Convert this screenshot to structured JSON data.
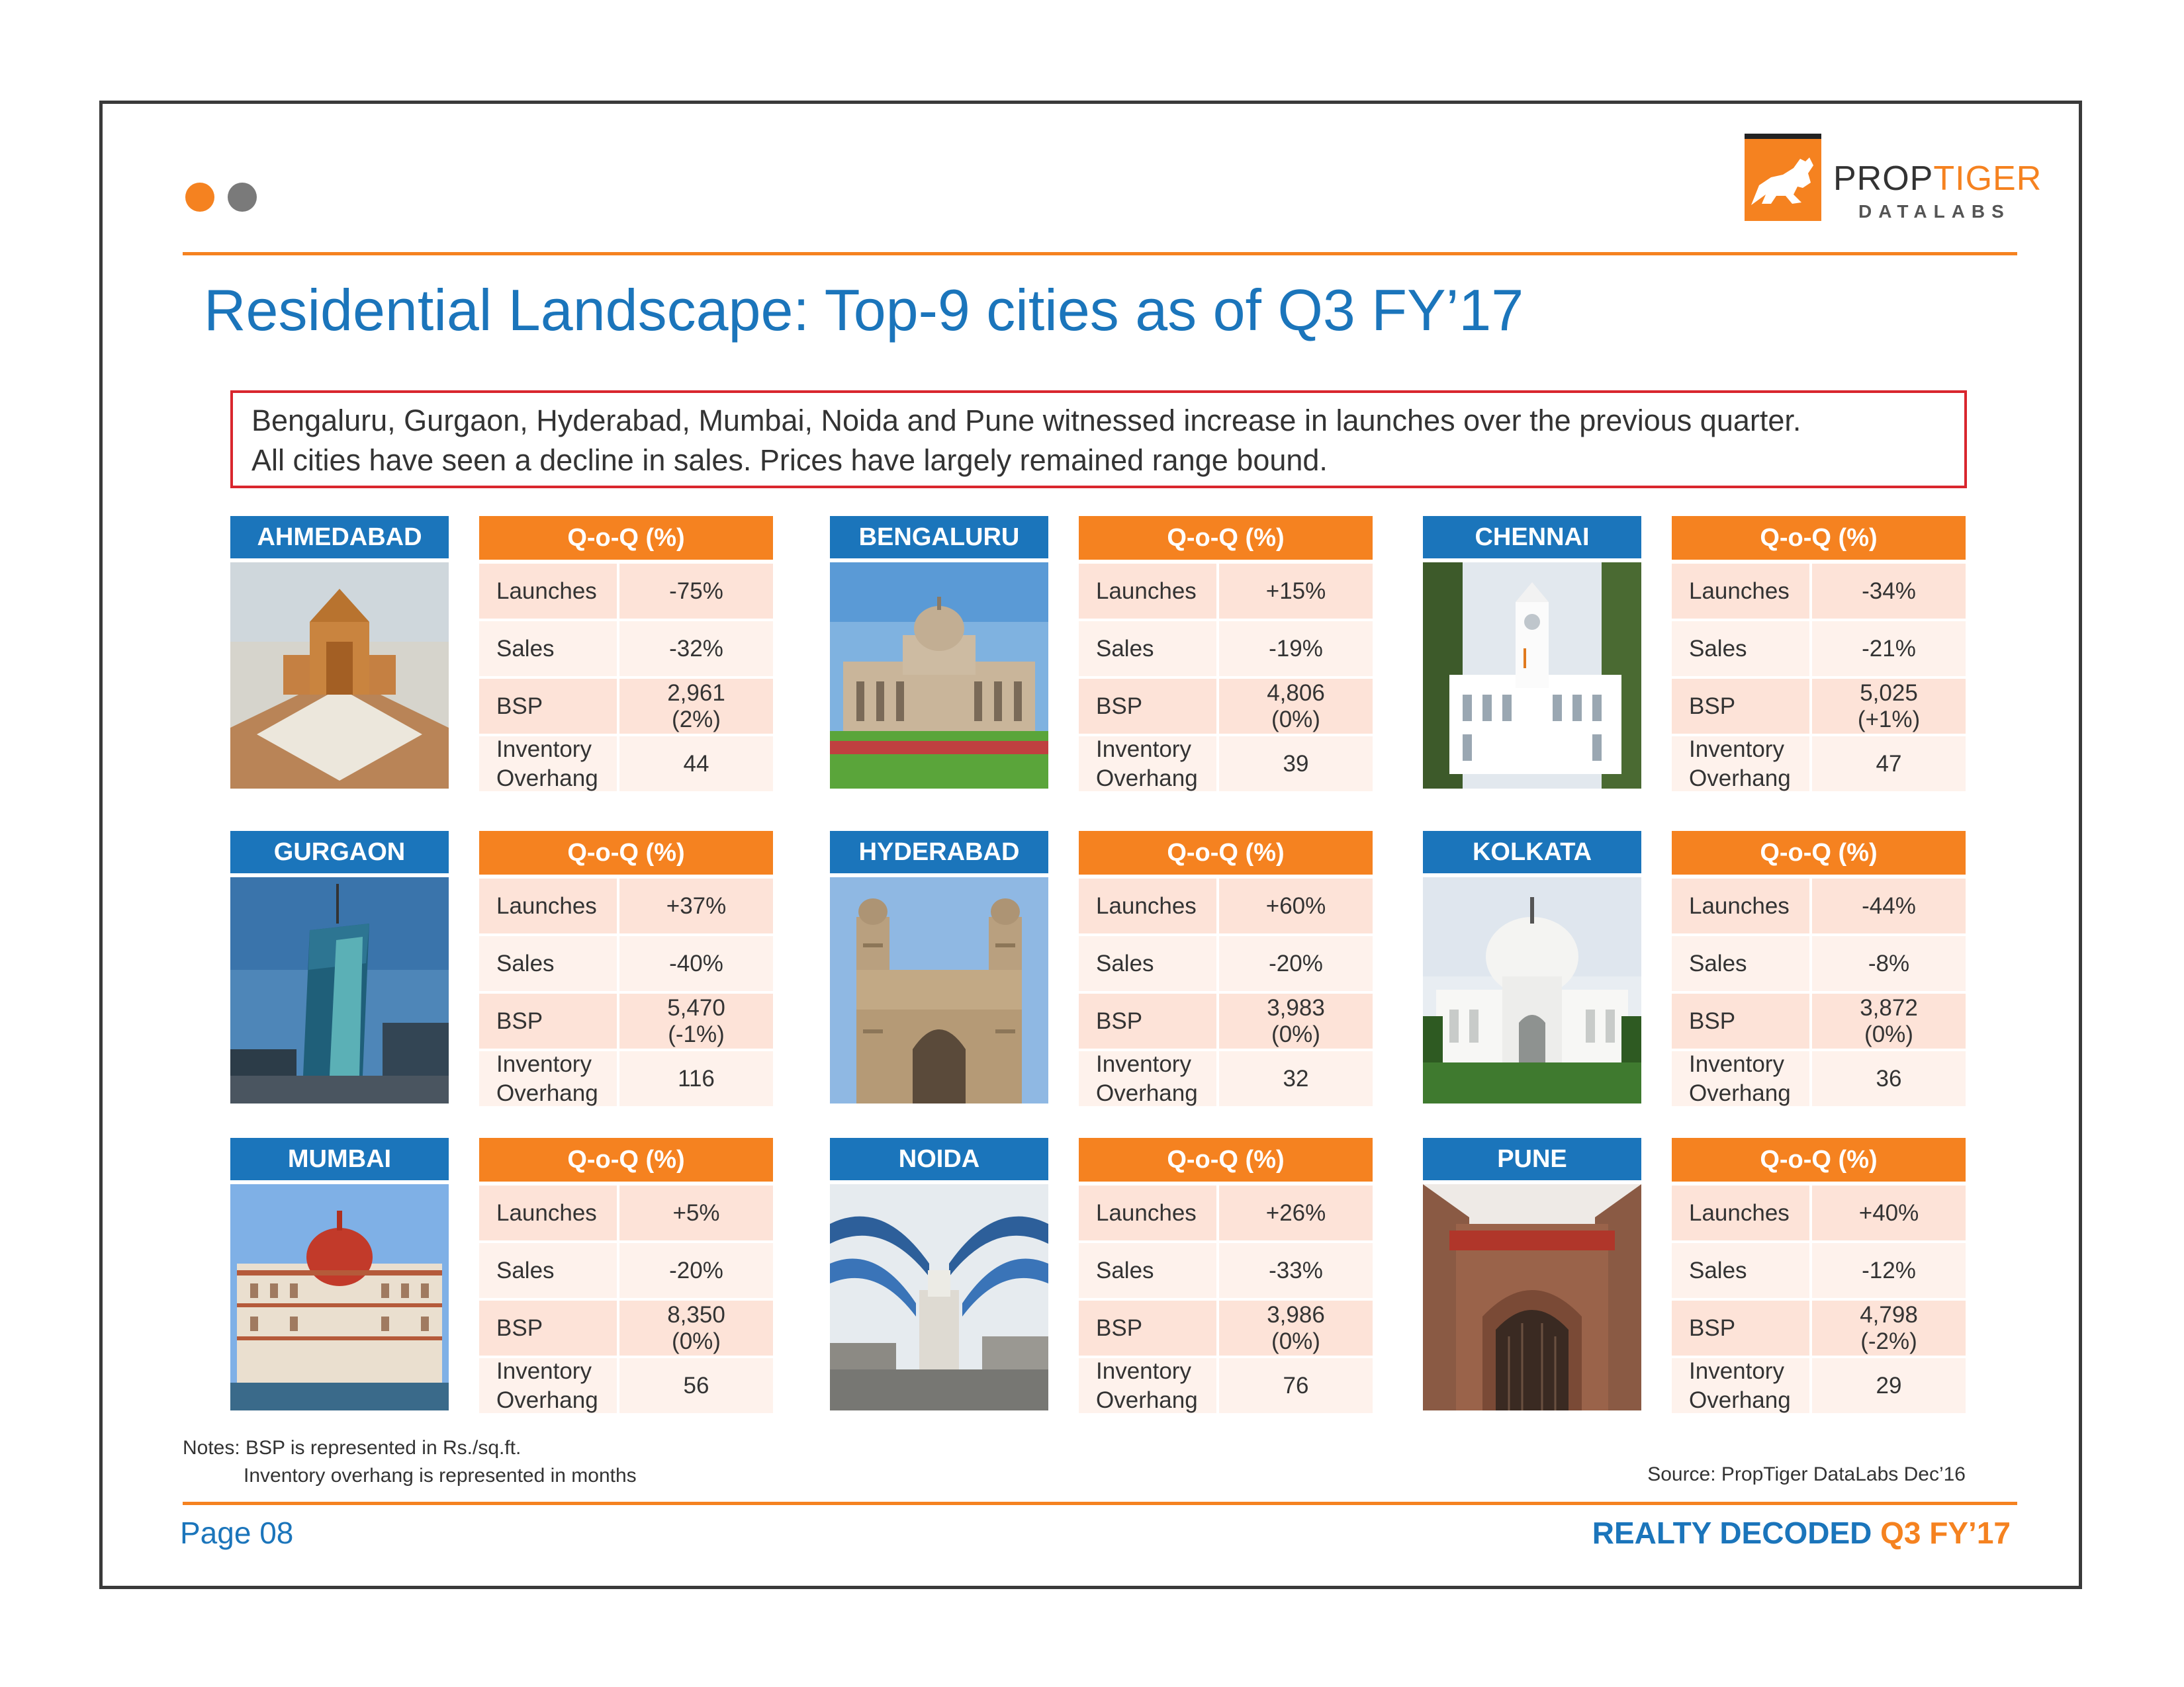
{
  "colors": {
    "brand_blue": "#1b75bb",
    "brand_orange": "#f58220",
    "alert_red": "#d9262e"
  },
  "logo": {
    "name_part1": "PROP",
    "name_part2": "TIGER",
    "sub": "DATALABS"
  },
  "title": "Residential Landscape: Top-9 cities as of Q3 FY’17",
  "summary": {
    "line1": "Bengaluru, Gurgaon, Hyderabad, Mumbai, Noida and Pune witnessed increase in launches over the previous quarter.",
    "line2": "All cities have seen a decline in sales. Prices have largely remained range bound."
  },
  "table_header": "Q-o-Q (%)",
  "row_labels": {
    "launches": "Launches",
    "sales": "Sales",
    "bsp": "BSP",
    "inv1": "Inventory",
    "inv2": "Overhang"
  },
  "cities": [
    {
      "name": "AHMEDABAD",
      "image_icon": "akshardham-temple-image",
      "launches": "-75%",
      "sales": "-32%",
      "bsp": "2,961",
      "bsp_change": "(2%)",
      "inventory": "44"
    },
    {
      "name": "BENGALURU",
      "image_icon": "vidhana-soudha-image",
      "launches": "+15%",
      "sales": "-19%",
      "bsp": "4,806",
      "bsp_change": "(0%)",
      "inventory": "39"
    },
    {
      "name": "CHENNAI",
      "image_icon": "ripon-building-image",
      "launches": "-34%",
      "sales": "-21%",
      "bsp": "5,025",
      "bsp_change": "(+1%)",
      "inventory": "47"
    },
    {
      "name": "GURGAON",
      "image_icon": "glass-tower-image",
      "launches": "+37%",
      "sales": "-40%",
      "bsp": "5,470",
      "bsp_change": "(-1%)",
      "inventory": "116"
    },
    {
      "name": "HYDERABAD",
      "image_icon": "charminar-image",
      "launches": "+60%",
      "sales": "-20%",
      "bsp": "3,983",
      "bsp_change": "(0%)",
      "inventory": "32"
    },
    {
      "name": "KOLKATA",
      "image_icon": "victoria-memorial-image",
      "launches": "-44%",
      "sales": "-8%",
      "bsp": "3,872",
      "bsp_change": "(0%)",
      "inventory": "36"
    },
    {
      "name": "MUMBAI",
      "image_icon": "taj-hotel-image",
      "launches": "+5%",
      "sales": "-20%",
      "bsp": "8,350",
      "bsp_change": "(0%)",
      "inventory": "56"
    },
    {
      "name": "NOIDA",
      "image_icon": "city-gate-image",
      "launches": "+26%",
      "sales": "-33%",
      "bsp": "3,986",
      "bsp_change": "(0%)",
      "inventory": "76"
    },
    {
      "name": "PUNE",
      "image_icon": "shaniwar-wada-image",
      "launches": "+40%",
      "sales": "-12%",
      "bsp": "4,798",
      "bsp_change": "(-2%)",
      "inventory": "29"
    }
  ],
  "notes": {
    "line1": "Notes: BSP is represented in Rs./sq.ft.",
    "line2": "Inventory overhang is represented in months"
  },
  "source": "Source: PropTiger DataLabs Dec’16",
  "footer": {
    "page": "Page 08",
    "report_part1": "REALTY DECODED",
    "report_part2": "Q3 FY’17"
  }
}
